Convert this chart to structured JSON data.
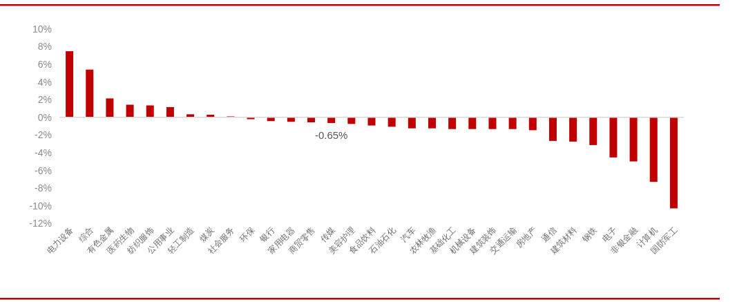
{
  "chart_data": {
    "type": "bar",
    "categories": [
      "电力设备",
      "综合",
      "有色金属",
      "医药生物",
      "纺织服饰",
      "公用事业",
      "轻工制造",
      "煤炭",
      "社会服务",
      "环保",
      "银行",
      "家用电器",
      "商贸零售",
      "传媒",
      "美容护理",
      "食品饮料",
      "石油石化",
      "汽车",
      "农林牧渔",
      "基础化工",
      "机械设备",
      "建筑装饰",
      "交通运输",
      "房地产",
      "通信",
      "建筑材料",
      "钢铁",
      "电子",
      "非银金融",
      "计算机",
      "国防军工"
    ],
    "values": [
      7.47,
      5.39,
      2.13,
      1.42,
      1.34,
      1.15,
      0.34,
      0.29,
      0.1,
      -0.22,
      -0.43,
      -0.51,
      -0.57,
      -0.65,
      -0.75,
      -0.93,
      -1.07,
      -1.25,
      -1.25,
      -1.33,
      -1.33,
      -1.33,
      -1.33,
      -1.46,
      -2.67,
      -2.75,
      -3.14,
      -4.54,
      -4.99,
      -7.3,
      -10.3
    ],
    "color": "#c00000",
    "ylim": [
      -12,
      10
    ],
    "yticks": [
      {
        "value": 10,
        "label": "10%"
      },
      {
        "value": 8,
        "label": "8%"
      },
      {
        "value": 6,
        "label": "6%"
      },
      {
        "value": 4,
        "label": "4%"
      },
      {
        "value": 2,
        "label": "2%"
      },
      {
        "value": 0,
        "label": "0%"
      },
      {
        "value": -2,
        "label": "-2%"
      },
      {
        "value": -4,
        "label": "-4%"
      },
      {
        "value": -6,
        "label": "-6%"
      },
      {
        "value": -8,
        "label": "-8%"
      },
      {
        "value": -10,
        "label": "-10%"
      },
      {
        "value": -12,
        "label": "-12%"
      }
    ],
    "annotations": [
      {
        "text": "-0.65%",
        "x": "传媒",
        "y": -0.65
      }
    ]
  }
}
